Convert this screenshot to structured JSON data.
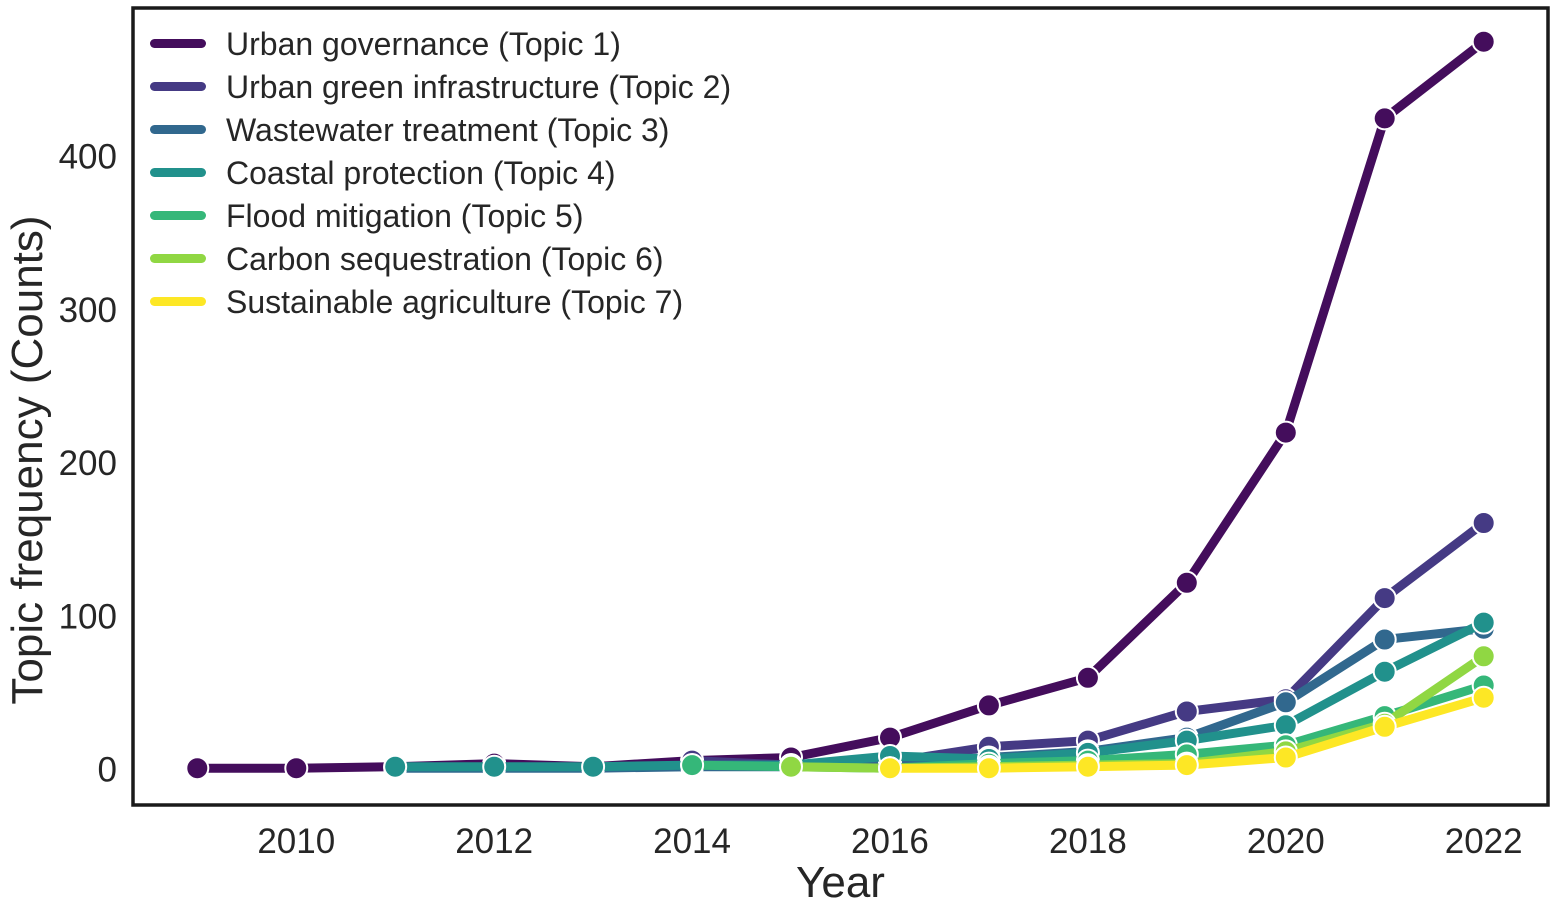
{
  "figure": {
    "background": "#ffffff",
    "frame_color": "#1a1a1a",
    "text_color": "#262626"
  },
  "chart_data": {
    "type": "line",
    "title": "",
    "xlabel": "Year",
    "ylabel": "Topic frequency (Counts)",
    "grid": false,
    "legend_position": "upper-left",
    "x_ticks": [
      "2010",
      "2012",
      "2014",
      "2016",
      "2018",
      "2020",
      "2022"
    ],
    "x_tick_years": [
      2010,
      2012,
      2014,
      2016,
      2018,
      2020,
      2022
    ],
    "y_ticks": [
      "0",
      "100",
      "200",
      "300",
      "400"
    ],
    "y_tick_values": [
      0,
      100,
      200,
      300,
      400
    ],
    "xlim": [
      2008.35,
      2022.65
    ],
    "ylim": [
      -23,
      497
    ],
    "x": [
      2009,
      2010,
      2011,
      2012,
      2013,
      2014,
      2015,
      2016,
      2017,
      2018,
      2019,
      2020,
      2021,
      2022
    ],
    "series": [
      {
        "name": "Urban governance (Topic 1)",
        "color": "#440d5c",
        "values": [
          1,
          1,
          2,
          4,
          2,
          6,
          8,
          21,
          42,
          60,
          122,
          220,
          425,
          475
        ]
      },
      {
        "name": "Urban green infrastructure (Topic 2)",
        "color": "#453a84",
        "values": [
          null,
          null,
          null,
          null,
          null,
          6,
          3,
          5,
          15,
          19,
          38,
          46,
          112,
          161
        ]
      },
      {
        "name": "Wastewater treatment (Topic 3)",
        "color": "#31688e",
        "values": [
          null,
          null,
          1,
          1,
          1,
          2,
          2,
          5,
          8,
          12,
          21,
          44,
          85,
          92
        ]
      },
      {
        "name": "Coastal protection (Topic 4)",
        "color": "#21918c",
        "values": [
          null,
          null,
          2,
          2,
          2,
          3,
          3,
          9,
          7,
          11,
          19,
          29,
          64,
          96
        ]
      },
      {
        "name": "Flood mitigation (Topic 5)",
        "color": "#35b779",
        "values": [
          null,
          null,
          null,
          null,
          null,
          3,
          2,
          1,
          4,
          6,
          10,
          16,
          35,
          55
        ]
      },
      {
        "name": "Carbon sequestration (Topic 6)",
        "color": "#90d743",
        "values": [
          null,
          null,
          null,
          null,
          null,
          null,
          2,
          1,
          2,
          3,
          4,
          12,
          30,
          74
        ]
      },
      {
        "name": "Sustainable agriculture (Topic 7)",
        "color": "#fde725",
        "values": [
          null,
          null,
          null,
          null,
          null,
          null,
          null,
          1,
          1,
          2,
          3,
          8,
          28,
          47
        ]
      }
    ]
  }
}
